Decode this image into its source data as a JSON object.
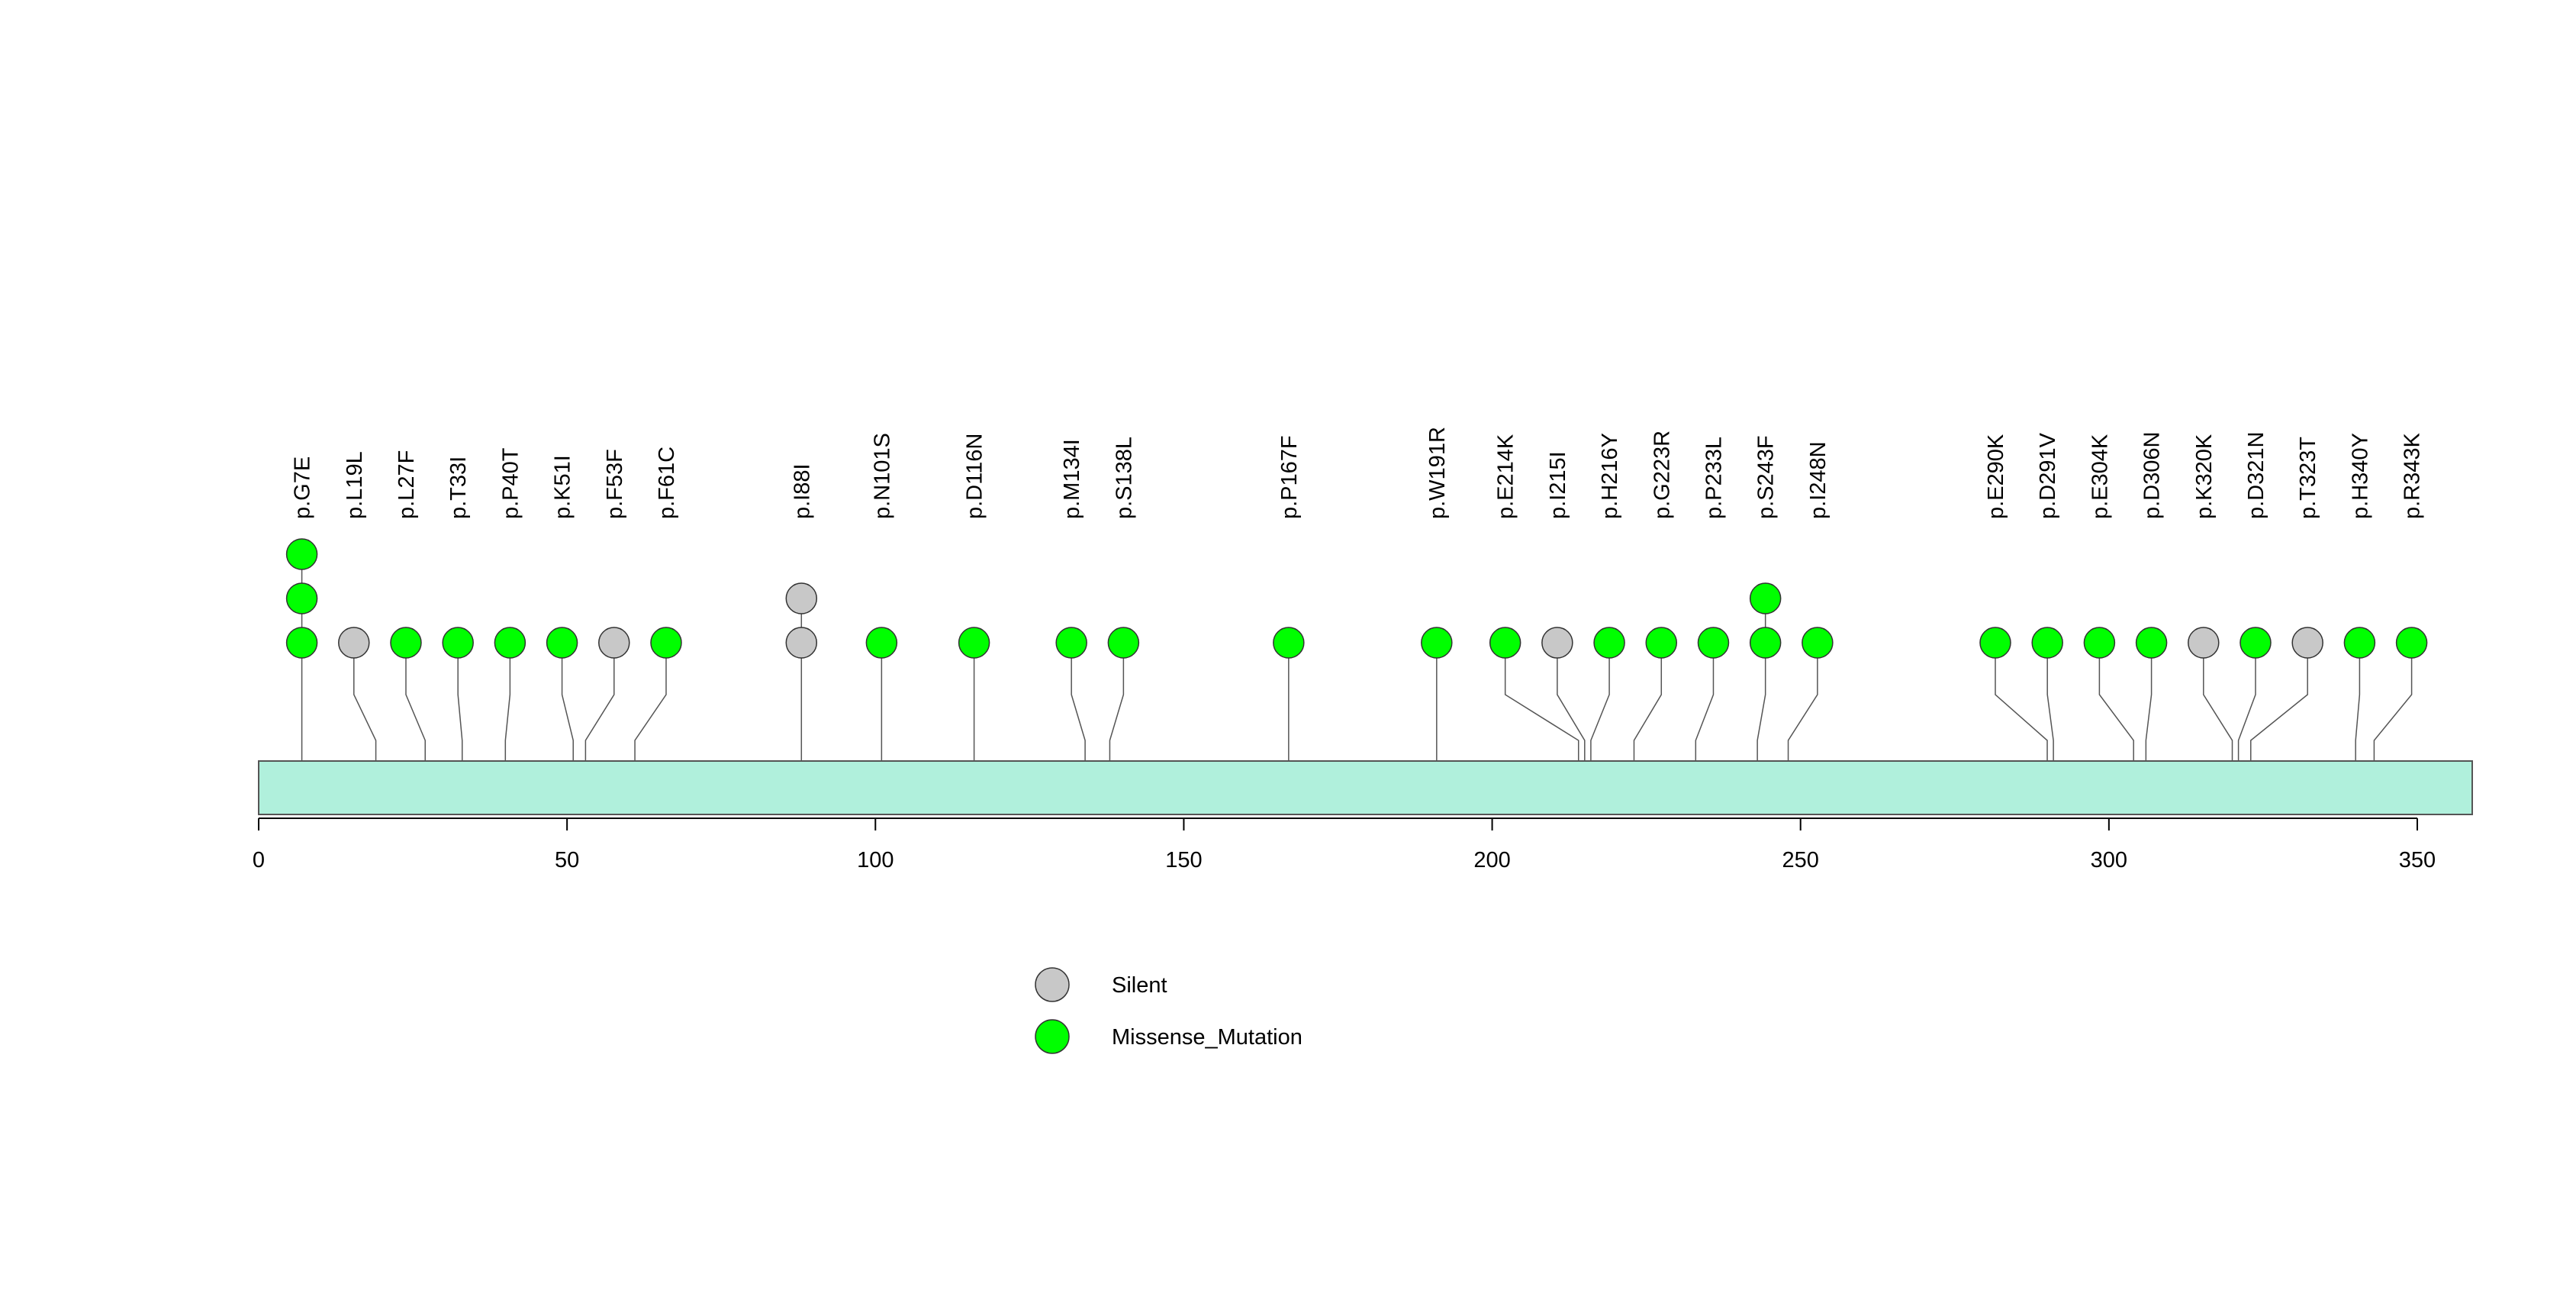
{
  "chart_data": {
    "type": "lollipop",
    "title": "",
    "xlabel": "",
    "ylabel": "",
    "xlim": [
      0,
      359
    ],
    "x_ticks": [
      0,
      50,
      100,
      150,
      200,
      250,
      300,
      350
    ],
    "colors": {
      "Silent": "#c8c8c8",
      "Missense_Mutation": "#00ff00",
      "protein_bar": "#b0f0dc",
      "line": "#555555"
    },
    "legend": {
      "position": "bottom-center",
      "entries": [
        {
          "name": "Silent",
          "color": "#c8c8c8"
        },
        {
          "name": "Missense_Mutation",
          "color": "#00ff00"
        }
      ]
    },
    "mutations": [
      {
        "label": "p.G7E",
        "position": 7,
        "counts": {
          "Missense_Mutation": 3
        }
      },
      {
        "label": "p.L19L",
        "position": 19,
        "counts": {
          "Silent": 1
        }
      },
      {
        "label": "p.L27F",
        "position": 27,
        "counts": {
          "Missense_Mutation": 1
        }
      },
      {
        "label": "p.T33I",
        "position": 33,
        "counts": {
          "Missense_Mutation": 1
        }
      },
      {
        "label": "p.P40T",
        "position": 40,
        "counts": {
          "Missense_Mutation": 1
        }
      },
      {
        "label": "p.K51I",
        "position": 51,
        "counts": {
          "Missense_Mutation": 1
        }
      },
      {
        "label": "p.F53F",
        "position": 53,
        "counts": {
          "Silent": 1
        }
      },
      {
        "label": "p.F61C",
        "position": 61,
        "counts": {
          "Missense_Mutation": 1
        }
      },
      {
        "label": "p.I88I",
        "position": 88,
        "counts": {
          "Silent": 2
        }
      },
      {
        "label": "p.N101S",
        "position": 101,
        "counts": {
          "Missense_Mutation": 1
        }
      },
      {
        "label": "p.D116N",
        "position": 116,
        "counts": {
          "Missense_Mutation": 1
        }
      },
      {
        "label": "p.M134I",
        "position": 134,
        "counts": {
          "Missense_Mutation": 1
        }
      },
      {
        "label": "p.S138L",
        "position": 138,
        "counts": {
          "Missense_Mutation": 1
        }
      },
      {
        "label": "p.P167F",
        "position": 167,
        "counts": {
          "Missense_Mutation": 1
        }
      },
      {
        "label": "p.W191R",
        "position": 191,
        "counts": {
          "Missense_Mutation": 1
        }
      },
      {
        "label": "p.E214K",
        "position": 214,
        "counts": {
          "Missense_Mutation": 1
        }
      },
      {
        "label": "p.I215I",
        "position": 215,
        "counts": {
          "Silent": 1
        }
      },
      {
        "label": "p.H216Y",
        "position": 216,
        "counts": {
          "Missense_Mutation": 1
        }
      },
      {
        "label": "p.G223R",
        "position": 223,
        "counts": {
          "Missense_Mutation": 1
        }
      },
      {
        "label": "p.P233L",
        "position": 233,
        "counts": {
          "Missense_Mutation": 1
        }
      },
      {
        "label": "p.S243F",
        "position": 243,
        "counts": {
          "Missense_Mutation": 2
        }
      },
      {
        "label": "p.I248N",
        "position": 248,
        "counts": {
          "Missense_Mutation": 1
        }
      },
      {
        "label": "p.E290K",
        "position": 290,
        "counts": {
          "Missense_Mutation": 1
        }
      },
      {
        "label": "p.D291V",
        "position": 291,
        "counts": {
          "Missense_Mutation": 1
        }
      },
      {
        "label": "p.E304K",
        "position": 304,
        "counts": {
          "Missense_Mutation": 1
        }
      },
      {
        "label": "p.D306N",
        "position": 306,
        "counts": {
          "Missense_Mutation": 1
        }
      },
      {
        "label": "p.K320K",
        "position": 320,
        "counts": {
          "Silent": 1
        }
      },
      {
        "label": "p.D321N",
        "position": 321,
        "counts": {
          "Missense_Mutation": 1
        }
      },
      {
        "label": "p.T323T",
        "position": 323,
        "counts": {
          "Silent": 1
        }
      },
      {
        "label": "p.H340Y",
        "position": 340,
        "counts": {
          "Missense_Mutation": 1
        }
      },
      {
        "label": "p.R343K",
        "position": 343,
        "counts": {
          "Missense_Mutation": 1
        }
      }
    ]
  }
}
